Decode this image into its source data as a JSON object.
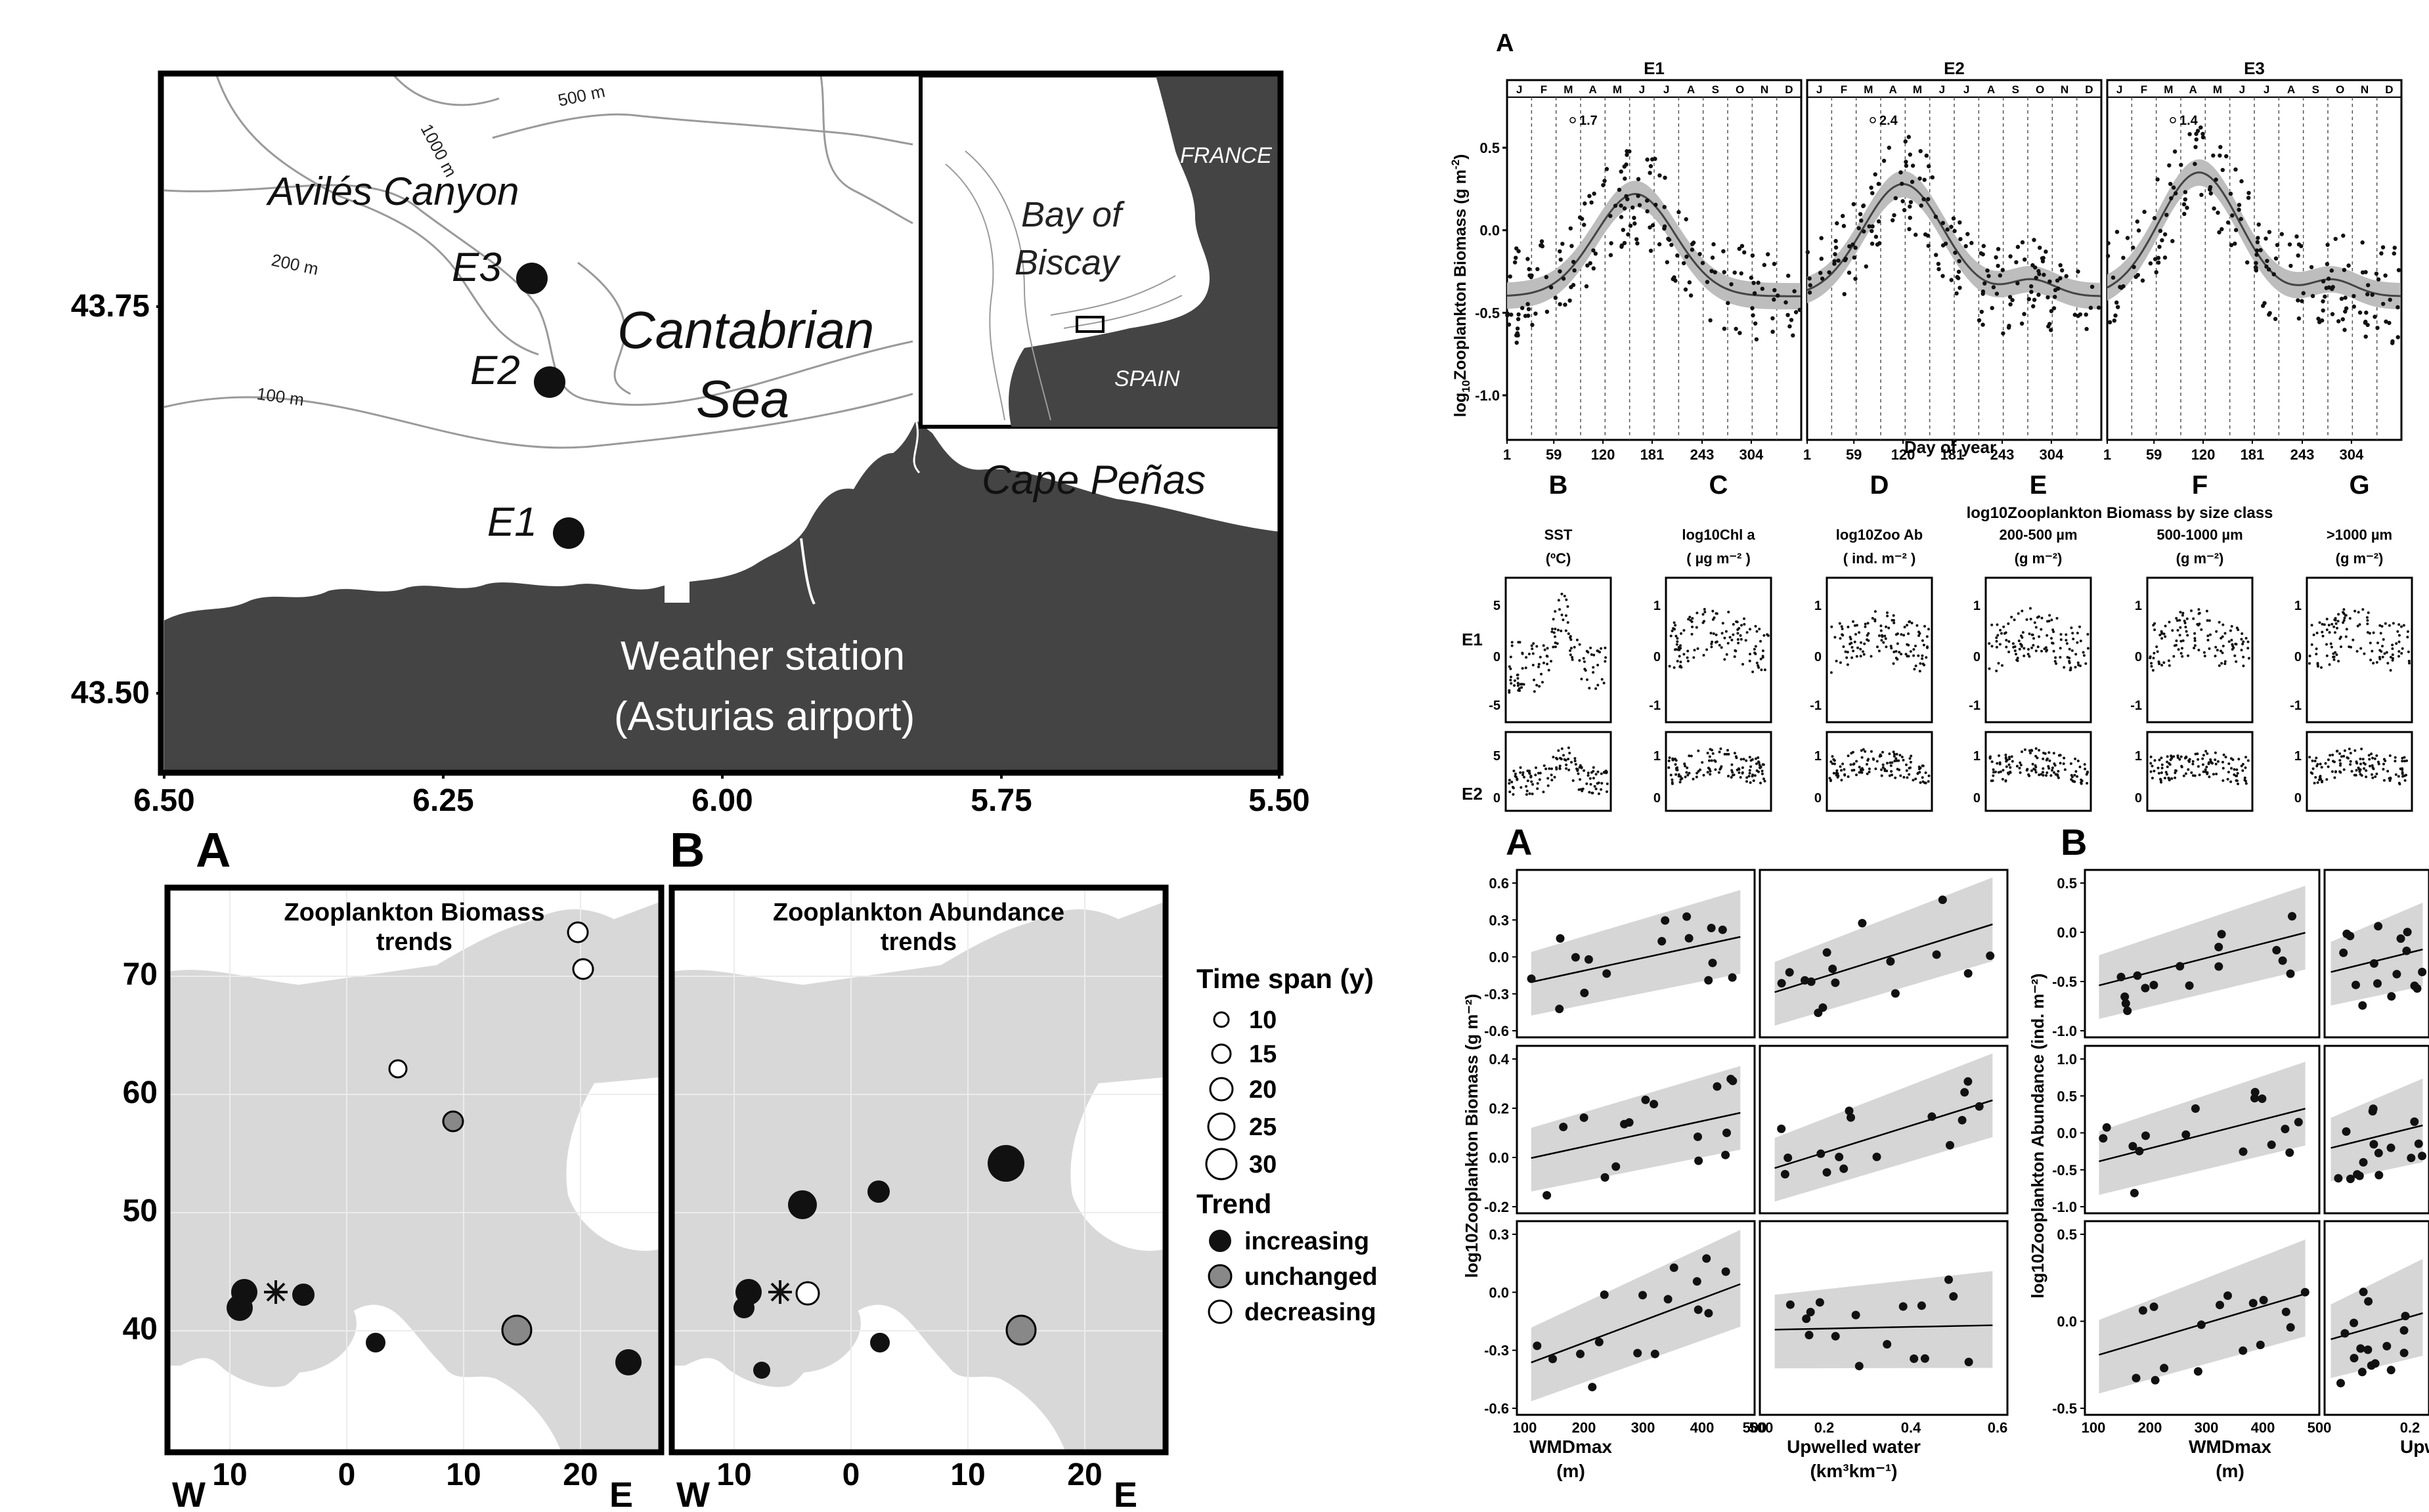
{
  "figure": {
    "map_top": {
      "lat_ticks": [
        "43.75",
        "43.50"
      ],
      "lon_ticks": [
        "6.50",
        "6.25",
        "6.00",
        "5.75",
        "5.50"
      ],
      "contours": [
        "1000 m",
        "500 m",
        "200 m",
        "100 m"
      ],
      "places": {
        "canyon": "Avilés Canyon",
        "sea_line1": "Cantabrian",
        "sea_line2": "Sea",
        "cape": "Cape Peñas",
        "weather_line1": "Weather station",
        "weather_line2": "(Asturias airport)"
      },
      "stations": [
        "E3",
        "E2",
        "E1"
      ],
      "inset": {
        "france": "FRANCE",
        "bay_line1": "Bay of",
        "bay_line2": "Biscay",
        "spain": "SPAIN"
      }
    },
    "europe": {
      "panel_a": {
        "letter": "A",
        "title_line1": "Zooplankton Biomass",
        "title_line2": "trends"
      },
      "panel_b": {
        "letter": "B",
        "title_line1": "Zooplankton Abundance",
        "title_line2": "trends"
      },
      "y_ticks": [
        "70",
        "60",
        "50",
        "40"
      ],
      "x_ticks": [
        "10",
        "0",
        "10",
        "20"
      ],
      "w_label": "W",
      "e_label": "E",
      "legend": {
        "time_title": "Time span (y)",
        "sizes": [
          "10",
          "15",
          "20",
          "25",
          "30"
        ],
        "trend_title": "Trend",
        "trends": [
          "increasing",
          "unchanged",
          "decreasing"
        ]
      }
    },
    "seasonal": {
      "letter": "A",
      "ylabel_pre": "log",
      "ylabel_sub": "10",
      "ylabel_post": "Zooplankton Biomass (g m",
      "ylabel_sup": "-2",
      "ylabel_close": ")",
      "xlabel": "Day of year",
      "y_ticks": [
        "0.5",
        "0.0",
        "-0.5",
        "-1.0"
      ],
      "x_ticks": [
        "1",
        "59",
        "120",
        "181",
        "243",
        "304"
      ],
      "months": [
        "J",
        "F",
        "M",
        "A",
        "M",
        "J",
        "J",
        "A",
        "S",
        "O",
        "N",
        "D"
      ],
      "panels": [
        {
          "name": "E1",
          "annot": "1.7"
        },
        {
          "name": "E2",
          "annot": "2.4"
        },
        {
          "name": "E3",
          "annot": "1.4"
        }
      ]
    },
    "small_multiples": {
      "header": "log10Zooplankton Biomass by size class",
      "columns": [
        {
          "letter": "B",
          "line1": "SST",
          "line2": "(ºC)"
        },
        {
          "letter": "C",
          "line1": "log10Chl a",
          "line2": "( µg m⁻² )"
        },
        {
          "letter": "D",
          "line1": "log10Zoo Ab",
          "line2": "( ind. m⁻² )"
        },
        {
          "letter": "E",
          "line1": "200-500 µm",
          "line2": "(g m⁻²)"
        },
        {
          "letter": "F",
          "line1": "500-1000 µm",
          "line2": "(g m⁻²)"
        },
        {
          "letter": "G",
          "line1": ">1000 µm",
          "line2": "(g m⁻²)"
        }
      ],
      "rows": [
        "E1",
        "E2"
      ]
    },
    "regression_a": {
      "letter": "A",
      "ylabel": "log10Zooplankton Biomass (g m⁻²)",
      "row_ticks": [
        [
          "0.6",
          "0.3",
          "0.0",
          "-0.3",
          "-0.6"
        ],
        [
          "0.4",
          "0.2",
          "0.0",
          "-0.2"
        ],
        [
          "0.3",
          "0.0",
          "-0.3",
          "-0.6"
        ]
      ],
      "x1_ticks": [
        "100",
        "200",
        "300",
        "400",
        "500"
      ],
      "x2_ticks": [
        "0.2",
        "0.4",
        "0.6"
      ],
      "x2_start": "500",
      "x1_label": "WMDmax",
      "x1_unit": "(m)",
      "x2_label": "Upwelled water",
      "x2_unit": "(km³km⁻¹)"
    },
    "regression_b": {
      "letter": "B",
      "ylabel": "log10Zooplankton Abundance (ind. m⁻²)",
      "row_ticks": [
        [
          "0.5",
          "0.0",
          "-0.5",
          "-1.0"
        ],
        [
          "1.0",
          "0.5",
          "0.0",
          "-0.5",
          "-1.0"
        ],
        [
          "0.5",
          "0.0",
          "-0.5"
        ]
      ],
      "x1_ticks": [
        "100",
        "200",
        "300",
        "400",
        "500"
      ],
      "x2_start": "0.2",
      "x1_label": "WMDmax",
      "x1_unit": "(m)",
      "x2_label": "Upw"
    }
  }
}
